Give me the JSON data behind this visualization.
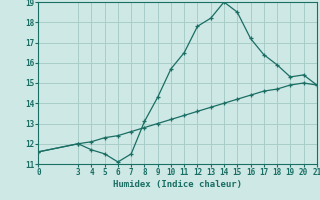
{
  "title": "",
  "xlabel": "Humidex (Indice chaleur)",
  "ylabel": "",
  "background_color": "#cde8e5",
  "grid_color": "#a8ceca",
  "line_color": "#1a6e64",
  "xlim": [
    0,
    21
  ],
  "ylim": [
    11,
    19
  ],
  "xticks": [
    0,
    3,
    4,
    5,
    6,
    7,
    8,
    9,
    10,
    11,
    12,
    13,
    14,
    15,
    16,
    17,
    18,
    19,
    20,
    21
  ],
  "yticks": [
    11,
    12,
    13,
    14,
    15,
    16,
    17,
    18,
    19
  ],
  "curve1_x": [
    0,
    3,
    4,
    5,
    6,
    7,
    8,
    9,
    10,
    11,
    12,
    13,
    14,
    15,
    16,
    17,
    18,
    19,
    20,
    21
  ],
  "curve1_y": [
    11.6,
    12.0,
    11.7,
    11.5,
    11.1,
    11.5,
    13.1,
    14.3,
    15.7,
    16.5,
    17.8,
    18.2,
    19.0,
    18.5,
    17.2,
    16.4,
    15.9,
    15.3,
    15.4,
    14.9
  ],
  "curve2_x": [
    0,
    3,
    4,
    5,
    6,
    7,
    8,
    9,
    10,
    11,
    12,
    13,
    14,
    15,
    16,
    17,
    18,
    19,
    20,
    21
  ],
  "curve2_y": [
    11.6,
    12.0,
    12.1,
    12.3,
    12.4,
    12.6,
    12.8,
    13.0,
    13.2,
    13.4,
    13.6,
    13.8,
    14.0,
    14.2,
    14.4,
    14.6,
    14.7,
    14.9,
    15.0,
    14.9
  ]
}
